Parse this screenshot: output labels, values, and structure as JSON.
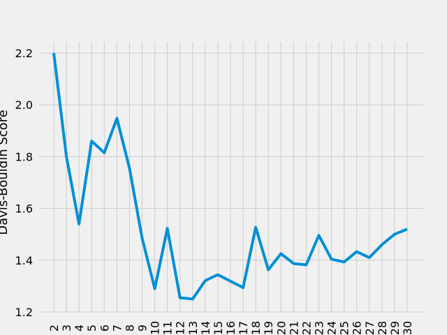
{
  "chart_data": {
    "type": "line",
    "title": "",
    "xlabel": "",
    "ylabel": "Davis-Bouldin Score",
    "x": [
      2,
      3,
      4,
      5,
      6,
      7,
      8,
      9,
      10,
      11,
      12,
      13,
      14,
      15,
      16,
      17,
      18,
      19,
      20,
      21,
      22,
      23,
      24,
      25,
      26,
      27,
      28,
      29,
      30
    ],
    "x_tick_labels": [
      "2",
      "3",
      "4",
      "5",
      "6",
      "7",
      "8",
      "9",
      "10",
      "11",
      "12",
      "13",
      "14",
      "15",
      "16",
      "17",
      "18",
      "19",
      "20",
      "21",
      "22",
      "23",
      "24",
      "25",
      "26",
      "27",
      "28",
      "29",
      "30"
    ],
    "values": [
      2.2,
      1.8,
      1.54,
      1.86,
      1.815,
      1.948,
      1.755,
      1.485,
      1.29,
      1.523,
      1.255,
      1.25,
      1.321,
      1.344,
      1.319,
      1.294,
      1.527,
      1.363,
      1.425,
      1.387,
      1.382,
      1.496,
      1.404,
      1.393,
      1.433,
      1.41,
      1.46,
      1.5,
      1.52
    ],
    "y_ticks": [
      1.2,
      1.4,
      1.6,
      1.8,
      2.0,
      2.2
    ],
    "y_tick_labels": [
      "1.2",
      "1.4",
      "1.6",
      "1.8",
      "2.0",
      "2.2"
    ],
    "xlim": [
      2,
      30
    ],
    "ylim": [
      1.2,
      2.2
    ],
    "grid": true,
    "line_color": "#008fd5",
    "grid_color": "#cbcbcb",
    "background_color": "#f0f0f0"
  }
}
